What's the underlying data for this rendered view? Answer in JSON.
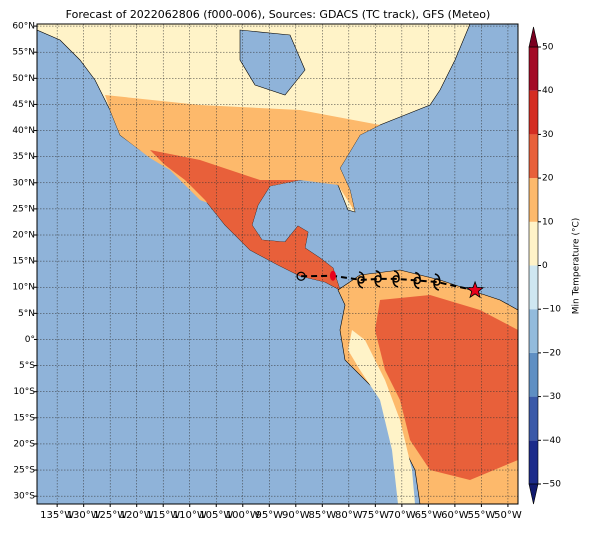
{
  "map": {
    "title": "Forecast of 2022062806 (f000-006), Sources: GDACS (TC track), GFS (Meteo)",
    "xlim": [
      -138.8,
      -48.1
    ],
    "ylim": [
      -31.5,
      60.4
    ],
    "xticks": [
      {
        "value": -135,
        "label": "135°W"
      },
      {
        "value": -130,
        "label": "130°W"
      },
      {
        "value": -125,
        "label": "125°W"
      },
      {
        "value": -120,
        "label": "120°W"
      },
      {
        "value": -115,
        "label": "115°W"
      },
      {
        "value": -110,
        "label": "110°W"
      },
      {
        "value": -105,
        "label": "105°W"
      },
      {
        "value": -100,
        "label": "100°W"
      },
      {
        "value": -95,
        "label": "95°W"
      },
      {
        "value": -90,
        "label": "90°W"
      },
      {
        "value": -85,
        "label": "85°W"
      },
      {
        "value": -80,
        "label": "80°W"
      },
      {
        "value": -75,
        "label": "75°W"
      },
      {
        "value": -70,
        "label": "70°W"
      },
      {
        "value": -65,
        "label": "65°W"
      },
      {
        "value": -60,
        "label": "60°W"
      },
      {
        "value": -55,
        "label": "55°W"
      },
      {
        "value": -50,
        "label": "50°W"
      }
    ],
    "yticks": [
      {
        "value": 60,
        "label": "60°N"
      },
      {
        "value": 55,
        "label": "55°N"
      },
      {
        "value": 50,
        "label": "50°N"
      },
      {
        "value": 45,
        "label": "45°N"
      },
      {
        "value": 40,
        "label": "40°N"
      },
      {
        "value": 35,
        "label": "35°N"
      },
      {
        "value": 30,
        "label": "30°N"
      },
      {
        "value": 25,
        "label": "25°N"
      },
      {
        "value": 20,
        "label": "20°N"
      },
      {
        "value": 15,
        "label": "15°N"
      },
      {
        "value": 10,
        "label": "10°N"
      },
      {
        "value": 5,
        "label": "5°N"
      },
      {
        "value": 0,
        "label": "0°"
      },
      {
        "value": -5,
        "label": "5°S"
      },
      {
        "value": -10,
        "label": "10°S"
      },
      {
        "value": -15,
        "label": "15°S"
      },
      {
        "value": -20,
        "label": "20°S"
      },
      {
        "value": -25,
        "label": "25°S"
      },
      {
        "value": -30,
        "label": "30°S"
      }
    ],
    "colorbar": {
      "label": "Min Temperature (°C)",
      "ticks": [
        {
          "value": -50,
          "label": "−50"
        },
        {
          "value": -40,
          "label": "−40"
        },
        {
          "value": -30,
          "label": "−30"
        },
        {
          "value": -20,
          "label": "−20"
        },
        {
          "value": -10,
          "label": "−10"
        },
        0,
        10,
        20,
        30,
        40,
        50
      ],
      "colors": [
        "#1c2b8a",
        "#3a59a8",
        "#5f8fc3",
        "#93bbdc",
        "#cfe7f1",
        "#fff3c8",
        "#fdb96b",
        "#e8603a",
        "#d42d22",
        "#a30b26"
      ],
      "extend_colors": [
        "#111a6e",
        "#7a0020"
      ]
    },
    "track": {
      "lon": [
        -89,
        -83,
        -77.7,
        -74.5,
        -71.1,
        -67.1,
        -63.4,
        -56.2
      ],
      "lat": [
        12.1,
        12.2,
        11.4,
        11.6,
        11.6,
        11.3,
        11.0,
        9.4
      ],
      "markers": [
        "circle",
        "dot",
        "hurricane",
        "hurricane",
        "hurricane",
        "hurricane",
        "hurricane",
        "star"
      ]
    }
  }
}
